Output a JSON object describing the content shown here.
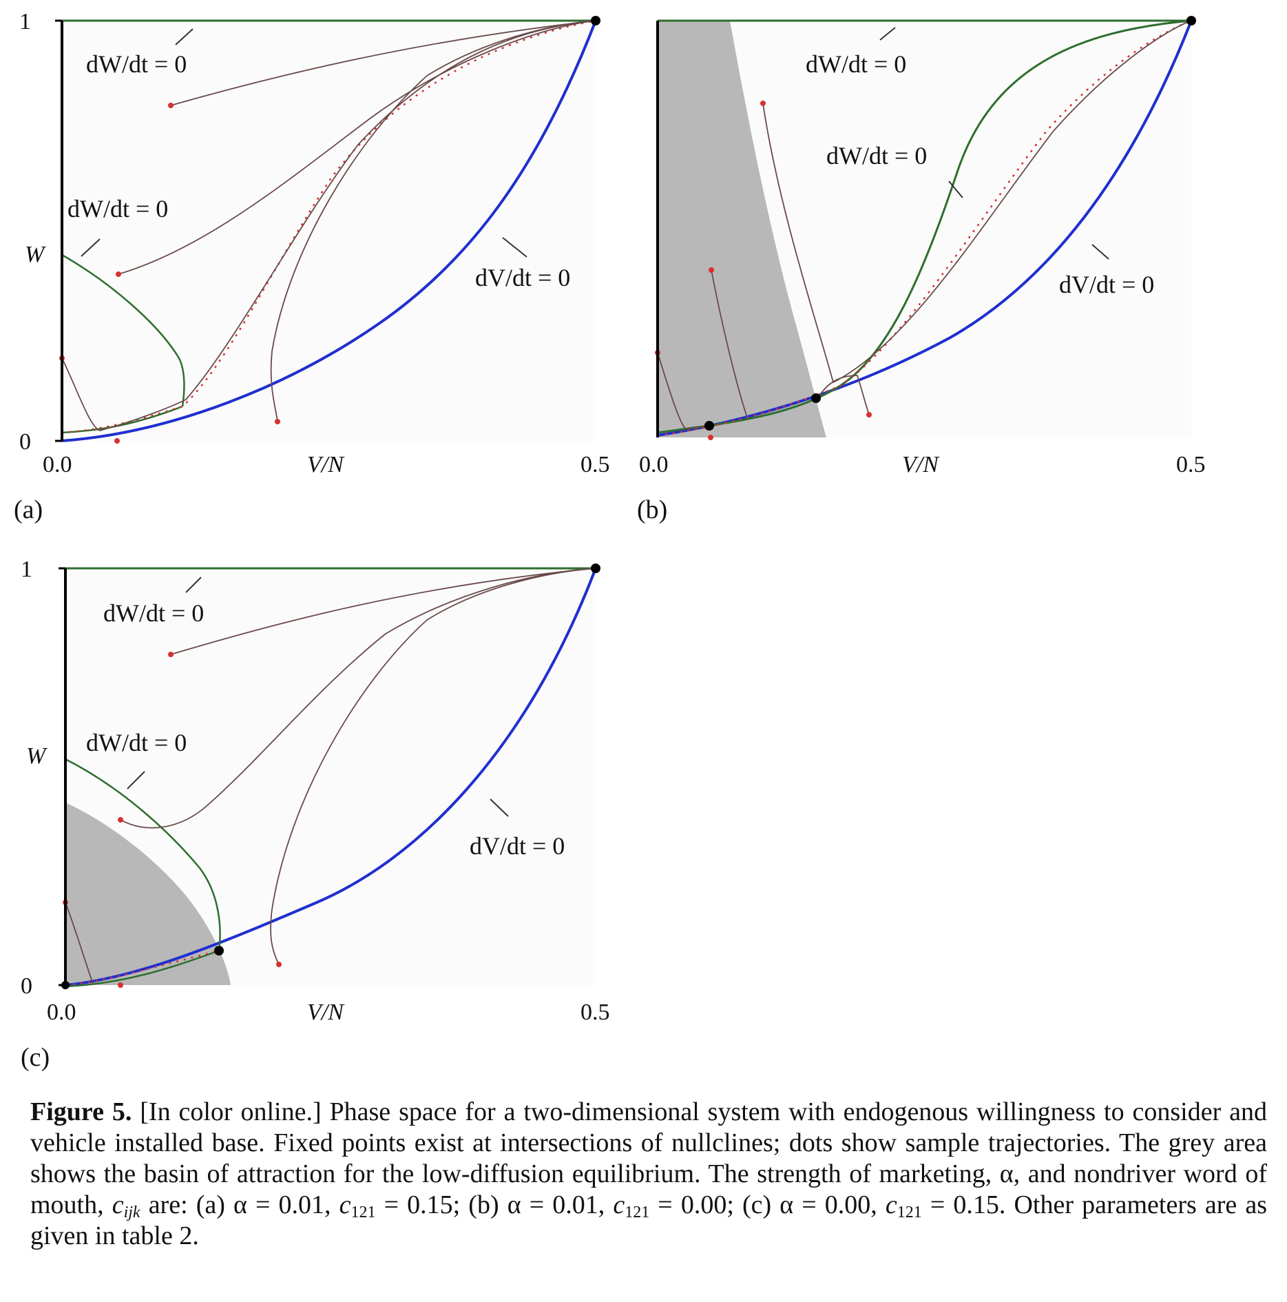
{
  "figure": {
    "panels": [
      {
        "id": "a",
        "tag": "(a)",
        "ylabel": "W",
        "xlabel": "V/N",
        "x_ticks": [
          "0.0",
          "0.5"
        ],
        "y_ticks": [
          "0",
          "1"
        ],
        "nullcline_labels": [
          "dW/dt = 0",
          "dW/dt = 0",
          "dV/dt = 0"
        ]
      },
      {
        "id": "b",
        "tag": "(b)",
        "ylabel": "",
        "xlabel": "V/N",
        "x_ticks": [
          "0.0",
          "0.5"
        ],
        "y_ticks": [],
        "nullcline_labels": [
          "dW/dt = 0",
          "dW/dt = 0",
          "dV/dt = 0"
        ]
      },
      {
        "id": "c",
        "tag": "(c)",
        "ylabel": "W",
        "xlabel": "V/N",
        "x_ticks": [
          "0.0",
          "0.5"
        ],
        "y_ticks": [
          "0",
          "1"
        ],
        "nullcline_labels": [
          "dW/dt = 0",
          "dW/dt = 0",
          "dV/dt = 0"
        ]
      }
    ],
    "colors": {
      "dW_nullcline": "#2e6e2e",
      "dV_nullcline": "#1f2fd0",
      "trajectory": "#6a4a4a",
      "trajectory_dot": "#d83030",
      "basin": "#b8b8b8",
      "fixed_point": "#000000"
    }
  },
  "chart_data": [
    {
      "type": "line",
      "panel": "(a)",
      "xlabel": "V/N",
      "ylabel": "W",
      "xlim": [
        0,
        0.5
      ],
      "ylim": [
        0,
        1
      ],
      "series": [
        {
          "values": [
            [
              0,
              1
            ],
            [
              0.5,
              1
            ]
          ]
        },
        {
          "values": [
            [
              0,
              0.44
            ],
            [
              0.03,
              0.38
            ],
            [
              0.06,
              0.3
            ],
            [
              0.08,
              0.22
            ],
            [
              0.11,
              0.14
            ],
            [
              0.113,
              0.1
            ],
            [
              0.114,
              0.09
            ]
          ]
        },
        {
          "values": [
            [
              0,
              0.02
            ],
            [
              0.05,
              0.025
            ],
            [
              0.1,
              0.07
            ],
            [
              0.15,
              0.12
            ],
            [
              0.2,
              0.19
            ],
            [
              0.25,
              0.29
            ],
            [
              0.3,
              0.41
            ],
            [
              0.35,
              0.55
            ],
            [
              0.4,
              0.72
            ],
            [
              0.45,
              0.88
            ],
            [
              0.5,
              1
            ]
          ]
        },
        {
          "values": [
            [
              0,
              0.02
            ],
            [
              0.05,
              0.025
            ],
            [
              0.1,
              0.07
            ],
            [
              0.15,
              0.12
            ],
            [
              0.2,
              0.19
            ],
            [
              0.25,
              0.29
            ],
            [
              0.3,
              0.41
            ],
            [
              0.35,
              0.55
            ],
            [
              0.4,
              0.72
            ],
            [
              0.45,
              0.88
            ],
            [
              0.5,
              1
            ]
          ]
        },
        {
          "values": [
            [
              0.1,
              0.81
            ],
            [
              0.2,
              0.87
            ],
            [
              0.3,
              0.92
            ],
            [
              0.4,
              0.96
            ],
            [
              0.5,
              1
            ]
          ]
        },
        {
          "values": [
            [
              0.05,
              0.41
            ],
            [
              0.1,
              0.45
            ],
            [
              0.15,
              0.55
            ],
            [
              0.2,
              0.66
            ],
            [
              0.25,
              0.78
            ],
            [
              0.3,
              0.88
            ],
            [
              0.4,
              0.96
            ],
            [
              0.5,
              1
            ]
          ]
        },
        {
          "values": [
            [
              0,
              0.2
            ],
            [
              0.03,
              0.1
            ],
            [
              0.06,
              0.05
            ],
            [
              0.1,
              0.07
            ],
            [
              0.15,
              0.18
            ],
            [
              0.2,
              0.38
            ],
            [
              0.25,
              0.6
            ],
            [
              0.3,
              0.78
            ],
            [
              0.4,
              0.93
            ],
            [
              0.5,
              1
            ]
          ]
        },
        {
          "values": [
            [
              0.2,
              0.05
            ],
            [
              0.2,
              0.14
            ],
            [
              0.22,
              0.35
            ],
            [
              0.26,
              0.58
            ],
            [
              0.3,
              0.75
            ],
            [
              0.35,
              0.88
            ],
            [
              0.42,
              0.96
            ],
            [
              0.5,
              1
            ]
          ]
        }
      ],
      "fixed_points": [
        [
          0.5,
          1
        ]
      ]
    },
    {
      "type": "line",
      "panel": "(b)",
      "xlabel": "V/N",
      "xlim": [
        0,
        0.5
      ],
      "ylim": [
        0,
        1
      ],
      "series": [
        {
          "values": [
            [
              0,
              1
            ],
            [
              0.5,
              1
            ]
          ]
        },
        {
          "values": [
            [
              0,
              0.01
            ],
            [
              0.05,
              0.03
            ],
            [
              0.1,
              0.05
            ],
            [
              0.15,
              0.1
            ],
            [
              0.2,
              0.18
            ],
            [
              0.25,
              0.33
            ],
            [
              0.28,
              0.52
            ],
            [
              0.32,
              0.72
            ],
            [
              0.36,
              0.87
            ],
            [
              0.42,
              0.95
            ],
            [
              0.5,
              0.99
            ]
          ]
        },
        {
          "values": [
            [
              0,
              0.01
            ],
            [
              0.05,
              0.03
            ],
            [
              0.1,
              0.05
            ],
            [
              0.15,
              0.09
            ],
            [
              0.2,
              0.15
            ],
            [
              0.25,
              0.24
            ],
            [
              0.3,
              0.36
            ],
            [
              0.35,
              0.52
            ],
            [
              0.4,
              0.7
            ],
            [
              0.45,
              0.86
            ],
            [
              0.5,
              1
            ]
          ]
        },
        {
          "values": [
            [
              0.1,
              0.81
            ],
            [
              0.13,
              0.57
            ],
            [
              0.15,
              0.14
            ],
            [
              0.2,
              0.17
            ],
            [
              0.25,
              0.28
            ],
            [
              0.3,
              0.47
            ],
            [
              0.35,
              0.64
            ],
            [
              0.4,
              0.79
            ],
            [
              0.45,
              0.9
            ],
            [
              0.5,
              1
            ]
          ]
        },
        {
          "values": [
            [
              0.05,
              0.41
            ],
            [
              0.07,
              0.2
            ],
            [
              0.085,
              0.05
            ]
          ]
        },
        {
          "values": [
            [
              0,
              0.2
            ],
            [
              0.02,
              0.03
            ],
            [
              0.05,
              0.03
            ]
          ]
        },
        {
          "values": [
            [
              0.2,
              0.05
            ],
            [
              0.19,
              0.15
            ],
            [
              0.15,
              0.14
            ]
          ]
        }
      ],
      "fixed_points": [
        [
          0.05,
          0.03
        ],
        [
          0.15,
          0.09
        ],
        [
          0.5,
          1
        ]
      ]
    },
    {
      "type": "line",
      "panel": "(c)",
      "xlabel": "V/N",
      "ylabel": "W",
      "xlim": [
        0,
        0.5
      ],
      "ylim": [
        0,
        1
      ],
      "series": [
        {
          "values": [
            [
              0,
              1
            ],
            [
              0.5,
              1
            ]
          ]
        },
        {
          "values": [
            [
              0,
              0.55
            ],
            [
              0.04,
              0.47
            ],
            [
              0.08,
              0.38
            ],
            [
              0.12,
              0.28
            ],
            [
              0.145,
              0.18
            ],
            [
              0.148,
              0.09
            ]
          ]
        },
        {
          "values": [
            [
              0,
              0
            ],
            [
              0.05,
              0.01
            ],
            [
              0.1,
              0.05
            ],
            [
              0.15,
              0.09
            ],
            [
              0.2,
              0.15
            ],
            [
              0.25,
              0.23
            ],
            [
              0.3,
              0.35
            ],
            [
              0.35,
              0.5
            ],
            [
              0.4,
              0.66
            ],
            [
              0.45,
              0.84
            ],
            [
              0.5,
              1
            ]
          ]
        },
        {
          "values": [
            [
              0,
              0
            ],
            [
              0.05,
              0.01
            ],
            [
              0.1,
              0.05
            ],
            [
              0.145,
              0.08
            ]
          ]
        },
        {
          "values": [
            [
              0.1,
              0.8
            ],
            [
              0.2,
              0.86
            ],
            [
              0.3,
              0.91
            ],
            [
              0.4,
              0.96
            ],
            [
              0.5,
              1
            ]
          ]
        },
        {
          "values": [
            [
              0.05,
              0.4
            ],
            [
              0.1,
              0.39
            ],
            [
              0.15,
              0.46
            ],
            [
              0.2,
              0.58
            ],
            [
              0.25,
              0.72
            ],
            [
              0.3,
              0.84
            ],
            [
              0.4,
              0.95
            ],
            [
              0.5,
              1
            ]
          ]
        },
        {
          "values": [
            [
              0.2,
              0.05
            ],
            [
              0.2,
              0.12
            ],
            [
              0.22,
              0.35
            ],
            [
              0.26,
              0.58
            ],
            [
              0.3,
              0.76
            ],
            [
              0.35,
              0.88
            ],
            [
              0.42,
              0.96
            ],
            [
              0.5,
              1
            ]
          ]
        },
        {
          "values": [
            [
              0,
              0.2
            ],
            [
              0.03,
              0.02
            ],
            [
              0.05,
              0
            ]
          ]
        }
      ],
      "fixed_points": [
        [
          0,
          0
        ],
        [
          0.145,
          0.08
        ],
        [
          0.5,
          1
        ]
      ]
    }
  ],
  "caption": {
    "label": "Figure 5.",
    "s1": " [In color online.] Phase space for a two-dimensional system with endogenous willingness to consider and vehicle installed base. Fixed points exist at intersections of nullclines; dots show sample trajectories. The grey area shows the basin of attraction for the low-diffusion equilibrium. The strength of marketing, α, and nondriver word of mouth, ",
    "c_var": "c",
    "c_sub": "ijk",
    "s2": " are: (a) α = 0.01, ",
    "c1": "c",
    "c1_sub": "121",
    "s3": " = 0.15; (b) α = 0.01, ",
    "c2": "c",
    "c2_sub": "121",
    "s4": " = 0.00; (c) α = 0.00, ",
    "c3": "c",
    "c3_sub": "121",
    "s5": " = 0.15. Other parameters are as given in table 2."
  }
}
